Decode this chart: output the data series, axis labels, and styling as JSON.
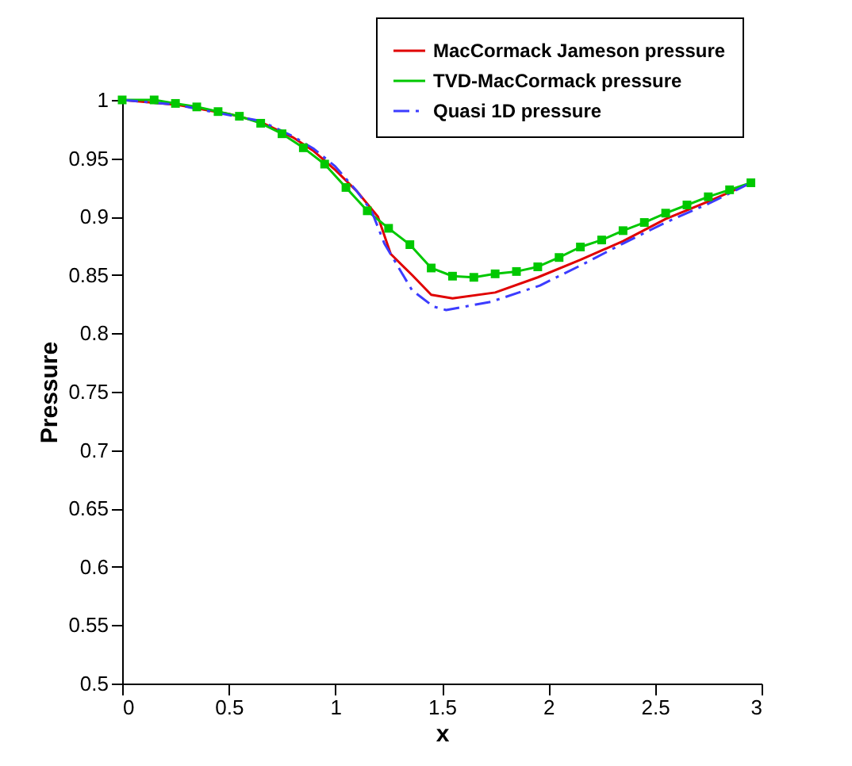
{
  "chart_data": {
    "type": "line",
    "xlabel": "x",
    "ylabel": "Pressure",
    "xlim": [
      0,
      3
    ],
    "ylim": [
      0.5,
      1
    ],
    "xticks": [
      0,
      0.5,
      1,
      1.5,
      2,
      2.5,
      3
    ],
    "yticks": [
      0.5,
      0.55,
      0.6,
      0.65,
      0.7,
      0.75,
      0.8,
      0.85,
      0.9,
      0.95,
      1
    ],
    "grid": false,
    "legend": "top right",
    "series": [
      {
        "name": "MacCormack Jameson pressure",
        "color": "#e00000",
        "line_style": "solid",
        "marker": "none",
        "x": [
          0,
          0.25,
          0.5,
          0.65,
          0.8,
          0.9,
          1.0,
          1.1,
          1.2,
          1.26,
          1.36,
          1.45,
          1.55,
          1.75,
          1.95,
          2.15,
          2.35,
          2.55,
          2.75,
          2.95
        ],
        "values": [
          1.0,
          0.996,
          0.988,
          0.981,
          0.968,
          0.956,
          0.94,
          0.922,
          0.9,
          0.868,
          0.85,
          0.833,
          0.83,
          0.835,
          0.848,
          0.863,
          0.879,
          0.898,
          0.913,
          0.929
        ]
      },
      {
        "name": "TVD-MacCormack pressure",
        "color": "#00c800",
        "line_style": "solid",
        "marker": "square",
        "x": [
          0,
          0.15,
          0.25,
          0.35,
          0.45,
          0.55,
          0.65,
          0.75,
          0.85,
          0.95,
          1.05,
          1.15,
          1.25,
          1.35,
          1.45,
          1.55,
          1.65,
          1.75,
          1.85,
          1.95,
          2.05,
          2.15,
          2.25,
          2.35,
          2.45,
          2.55,
          2.65,
          2.75,
          2.85,
          2.95
        ],
        "values": [
          1.0,
          1.0,
          0.997,
          0.994,
          0.99,
          0.986,
          0.98,
          0.971,
          0.959,
          0.945,
          0.925,
          0.905,
          0.89,
          0.876,
          0.856,
          0.849,
          0.848,
          0.851,
          0.853,
          0.857,
          0.865,
          0.874,
          0.88,
          0.888,
          0.895,
          0.903,
          0.91,
          0.917,
          0.923,
          0.929
        ]
      },
      {
        "name": "Quasi 1D pressure",
        "color": "#3c3cff",
        "line_style": "dashed",
        "marker": "none",
        "x": [
          0,
          0.25,
          0.5,
          0.65,
          0.8,
          0.9,
          1.0,
          1.1,
          1.17,
          1.23,
          1.36,
          1.46,
          1.52,
          1.73,
          1.96,
          2.16,
          2.35,
          2.55,
          2.75,
          2.95
        ],
        "values": [
          1.0,
          0.996,
          0.987,
          0.982,
          0.969,
          0.958,
          0.943,
          0.922,
          0.905,
          0.877,
          0.837,
          0.823,
          0.82,
          0.827,
          0.841,
          0.859,
          0.877,
          0.895,
          0.911,
          0.929
        ]
      }
    ]
  }
}
